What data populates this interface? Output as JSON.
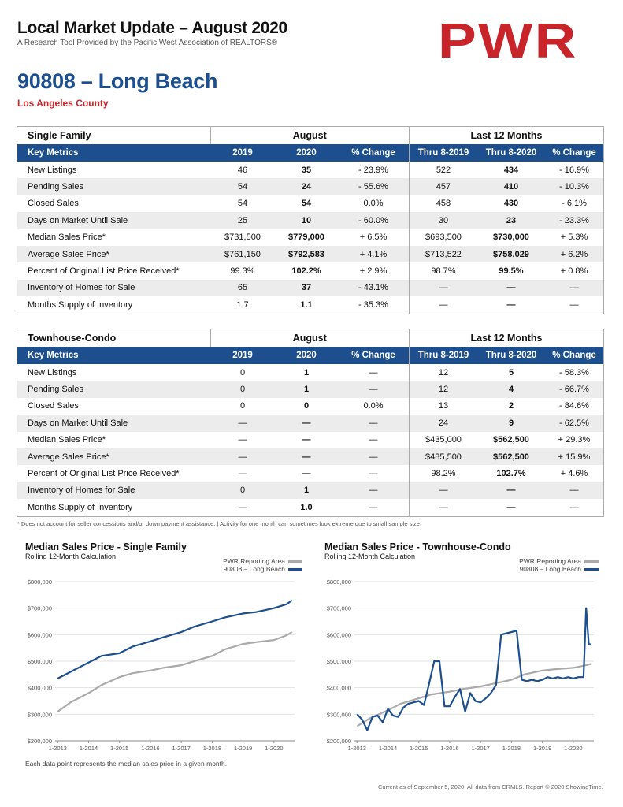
{
  "header": {
    "title": "Local Market Update – August 2020",
    "subtitle": "A Research Tool Provided by the Pacific West Association of REALTORS®",
    "logo_text": "PWR",
    "area_title": "90808 – Long Beach",
    "county": "Los Angeles County"
  },
  "colors": {
    "brand_blue": "#1d4f8f",
    "brand_red": "#c8242a",
    "reporting_area_gray": "#aaaaaa"
  },
  "tables": [
    {
      "section": "Single Family",
      "group_august": "August",
      "group_12mo": "Last 12 Months",
      "headers": [
        "Key Metrics",
        "2019",
        "2020",
        "% Change",
        "Thru 8-2019",
        "Thru 8-2020",
        "% Change"
      ],
      "rows": [
        [
          "New Listings",
          "46",
          "35",
          "- 23.9%",
          "522",
          "434",
          "- 16.9%"
        ],
        [
          "Pending Sales",
          "54",
          "24",
          "- 55.6%",
          "457",
          "410",
          "- 10.3%"
        ],
        [
          "Closed Sales",
          "54",
          "54",
          "0.0%",
          "458",
          "430",
          "- 6.1%"
        ],
        [
          "Days on Market Until Sale",
          "25",
          "10",
          "- 60.0%",
          "30",
          "23",
          "- 23.3%"
        ],
        [
          "Median Sales Price*",
          "$731,500",
          "$779,000",
          "+ 6.5%",
          "$693,500",
          "$730,000",
          "+ 5.3%"
        ],
        [
          "Average Sales Price*",
          "$761,150",
          "$792,583",
          "+ 4.1%",
          "$713,522",
          "$758,029",
          "+ 6.2%"
        ],
        [
          "Percent of Original List Price Received*",
          "99.3%",
          "102.2%",
          "+ 2.9%",
          "98.7%",
          "99.5%",
          "+ 0.8%"
        ],
        [
          "Inventory of Homes for Sale",
          "65",
          "37",
          "- 43.1%",
          "—",
          "—",
          "—"
        ],
        [
          "Months Supply of Inventory",
          "1.7",
          "1.1",
          "- 35.3%",
          "—",
          "—",
          "—"
        ]
      ]
    },
    {
      "section": "Townhouse-Condo",
      "group_august": "August",
      "group_12mo": "Last 12 Months",
      "headers": [
        "Key Metrics",
        "2019",
        "2020",
        "% Change",
        "Thru 8-2019",
        "Thru 8-2020",
        "% Change"
      ],
      "rows": [
        [
          "New Listings",
          "0",
          "1",
          "—",
          "12",
          "5",
          "- 58.3%"
        ],
        [
          "Pending Sales",
          "0",
          "1",
          "—",
          "12",
          "4",
          "- 66.7%"
        ],
        [
          "Closed Sales",
          "0",
          "0",
          "0.0%",
          "13",
          "2",
          "- 84.6%"
        ],
        [
          "Days on Market Until Sale",
          "—",
          "—",
          "—",
          "24",
          "9",
          "- 62.5%"
        ],
        [
          "Median Sales Price*",
          "—",
          "—",
          "—",
          "$435,000",
          "$562,500",
          "+ 29.3%"
        ],
        [
          "Average Sales Price*",
          "—",
          "—",
          "—",
          "$485,500",
          "$562,500",
          "+ 15.9%"
        ],
        [
          "Percent of Original List Price Received*",
          "—",
          "—",
          "—",
          "98.2%",
          "102.7%",
          "+ 4.6%"
        ],
        [
          "Inventory of Homes for Sale",
          "0",
          "1",
          "—",
          "—",
          "—",
          "—"
        ],
        [
          "Months Supply of Inventory",
          "—",
          "1.0",
          "—",
          "—",
          "—",
          "—"
        ]
      ]
    }
  ],
  "footnote": "* Does not account for seller concessions and/or down payment assistance. | Activity for one month can sometimes look extreme due to small sample size.",
  "chart_data": [
    {
      "type": "line",
      "title": "Median Sales Price - Single Family",
      "subtitle": "Rolling 12-Month Calculation",
      "ylim": [
        200000,
        800000
      ],
      "y_ticks": [
        "$200,000",
        "$300,000",
        "$400,000",
        "$500,000",
        "$600,000",
        "$700,000",
        "$800,000"
      ],
      "x_ticks": [
        "1-2013",
        "1-2014",
        "1-2015",
        "1-2016",
        "1-2017",
        "1-2018",
        "1-2019",
        "1-2020"
      ],
      "grid": true,
      "legend_position": "top-right",
      "series": [
        {
          "name": "PWR Reporting Area",
          "color": "#aaaaaa",
          "x": [
            "2013-01",
            "2013-06",
            "2014-01",
            "2014-06",
            "2015-01",
            "2015-06",
            "2016-01",
            "2016-06",
            "2017-01",
            "2017-06",
            "2018-01",
            "2018-06",
            "2019-01",
            "2019-06",
            "2020-01",
            "2020-06",
            "2020-08"
          ],
          "values": [
            310000,
            345000,
            380000,
            410000,
            440000,
            455000,
            465000,
            475000,
            485000,
            500000,
            520000,
            545000,
            565000,
            572000,
            580000,
            598000,
            610000
          ]
        },
        {
          "name": "90808 – Long Beach",
          "color": "#1d4f8f",
          "x": [
            "2013-01",
            "2013-06",
            "2014-01",
            "2014-06",
            "2015-01",
            "2015-06",
            "2016-01",
            "2016-06",
            "2017-01",
            "2017-06",
            "2018-01",
            "2018-06",
            "2019-01",
            "2019-06",
            "2020-01",
            "2020-06",
            "2020-08"
          ],
          "values": [
            435000,
            460000,
            495000,
            520000,
            530000,
            555000,
            575000,
            590000,
            610000,
            630000,
            650000,
            665000,
            680000,
            685000,
            700000,
            715000,
            730000
          ]
        }
      ]
    },
    {
      "type": "line",
      "title": "Median Sales Price - Townhouse-Condo",
      "subtitle": "Rolling 12-Month Calculation",
      "ylim": [
        200000,
        800000
      ],
      "y_ticks": [
        "$200,000",
        "$300,000",
        "$400,000",
        "$500,000",
        "$600,000",
        "$700,000",
        "$800,000"
      ],
      "x_ticks": [
        "1-2013",
        "1-2014",
        "1-2015",
        "1-2016",
        "1-2017",
        "1-2018",
        "1-2019",
        "1-2020"
      ],
      "grid": true,
      "legend_position": "top-right",
      "series": [
        {
          "name": "PWR Reporting Area",
          "color": "#aaaaaa",
          "x": [
            "2013-01",
            "2013-06",
            "2014-01",
            "2014-06",
            "2015-01",
            "2015-06",
            "2016-01",
            "2016-06",
            "2017-01",
            "2017-06",
            "2018-01",
            "2018-06",
            "2019-01",
            "2019-06",
            "2020-01",
            "2020-06",
            "2020-08"
          ],
          "values": [
            255000,
            285000,
            315000,
            340000,
            360000,
            375000,
            385000,
            395000,
            405000,
            415000,
            430000,
            450000,
            465000,
            470000,
            475000,
            485000,
            490000
          ]
        },
        {
          "name": "90808 – Long Beach",
          "color": "#1d4f8f",
          "x": [
            "2013-01",
            "2013-03",
            "2013-05",
            "2013-07",
            "2013-09",
            "2013-11",
            "2014-01",
            "2014-03",
            "2014-05",
            "2014-07",
            "2014-09",
            "2014-11",
            "2015-01",
            "2015-03",
            "2015-05",
            "2015-07",
            "2015-09",
            "2015-11",
            "2016-01",
            "2016-03",
            "2016-05",
            "2016-07",
            "2016-09",
            "2016-11",
            "2017-01",
            "2017-03",
            "2017-05",
            "2017-07",
            "2017-09",
            "2017-11",
            "2018-01",
            "2018-03",
            "2018-05",
            "2018-07",
            "2018-09",
            "2018-11",
            "2019-01",
            "2019-03",
            "2019-05",
            "2019-07",
            "2019-09",
            "2019-11",
            "2020-01",
            "2020-03",
            "2020-05",
            "2020-06",
            "2020-07",
            "2020-08"
          ],
          "values": [
            300000,
            280000,
            240000,
            290000,
            295000,
            270000,
            320000,
            295000,
            290000,
            325000,
            340000,
            345000,
            350000,
            335000,
            415000,
            500000,
            500000,
            330000,
            330000,
            365000,
            395000,
            310000,
            380000,
            350000,
            345000,
            360000,
            380000,
            410000,
            600000,
            605000,
            610000,
            615000,
            430000,
            425000,
            430000,
            425000,
            430000,
            440000,
            435000,
            440000,
            435000,
            440000,
            435000,
            440000,
            440000,
            700000,
            565000,
            562500
          ]
        }
      ]
    }
  ],
  "bottom_note": "Each data point represents the median sales price in a given month.",
  "source_note": "Current as of September 5, 2020. All data from CRMLS. Report © 2020 ShowingTime."
}
